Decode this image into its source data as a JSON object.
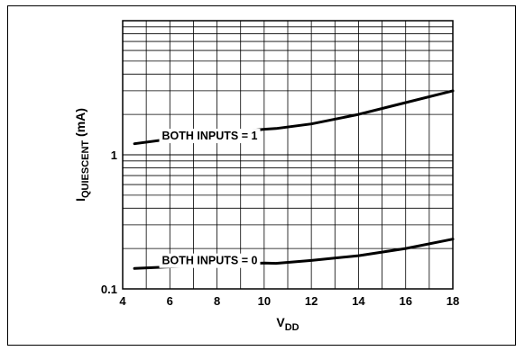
{
  "chart_data": {
    "type": "line",
    "title": "",
    "xlabel": {
      "main": "V",
      "subscript": "DD"
    },
    "ylabel": {
      "main": "I",
      "subscript": "QUIESCENT",
      "unit": " (mA)"
    },
    "xlim": [
      4,
      18
    ],
    "ylim": [
      0.1,
      10
    ],
    "yscale": "log",
    "x_ticks": [
      4,
      6,
      8,
      10,
      12,
      14,
      16,
      18
    ],
    "x_tick_labels": [
      "4",
      "6",
      "8",
      "10",
      "12",
      "14",
      "16",
      "18"
    ],
    "y_tick_values": [
      0.1,
      1
    ],
    "y_tick_labels": [
      "0.1",
      "1"
    ],
    "grid": true,
    "series": [
      {
        "name": "BOTH INPUTS = 1",
        "x": [
          4.5,
          6,
          8,
          10,
          10.5,
          12,
          14,
          16,
          18
        ],
        "y": [
          1.21,
          1.31,
          1.43,
          1.55,
          1.57,
          1.7,
          2.0,
          2.45,
          3.0
        ]
      },
      {
        "name": "BOTH INPUTS = 0",
        "x": [
          4.5,
          6,
          8,
          10,
          10.5,
          12,
          14,
          16,
          18
        ],
        "y": [
          0.142,
          0.146,
          0.151,
          0.156,
          0.155,
          0.163,
          0.177,
          0.2,
          0.235
        ]
      }
    ]
  }
}
